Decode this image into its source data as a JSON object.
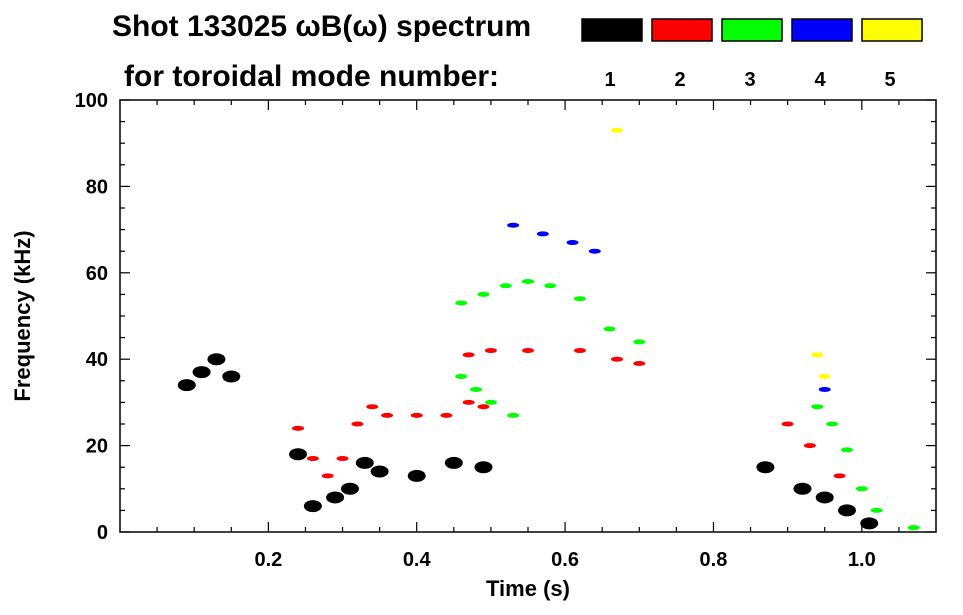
{
  "chart_data": {
    "type": "spectrogram",
    "title_line1": "Shot 133025 ωB(ω) spectrum",
    "title_line2": "for toroidal mode number:",
    "xlabel": "Time (s)",
    "ylabel": "Frequency (kHz)",
    "xlim": [
      0.0,
      1.1
    ],
    "ylim": [
      0,
      100
    ],
    "x_ticks": [
      0.2,
      0.4,
      0.6,
      0.8,
      1.0
    ],
    "x_tick_labels": [
      "0.2",
      "0.4",
      "0.6",
      "0.8",
      "1.0"
    ],
    "y_ticks": [
      0,
      20,
      40,
      60,
      80,
      100
    ],
    "y_tick_labels": [
      "0",
      "20",
      "40",
      "60",
      "80",
      "100"
    ],
    "legend": [
      {
        "label": "1",
        "color": "#000000"
      },
      {
        "label": "2",
        "color": "#ff0000"
      },
      {
        "label": "3",
        "color": "#00ff00"
      },
      {
        "label": "4",
        "color": "#0000ff"
      },
      {
        "label": "5",
        "color": "#ffff00"
      }
    ],
    "series": [
      {
        "name": "n=1",
        "color": "#000000",
        "points": [
          [
            0.09,
            34
          ],
          [
            0.11,
            37
          ],
          [
            0.13,
            40
          ],
          [
            0.15,
            36
          ],
          [
            0.24,
            18
          ],
          [
            0.26,
            6
          ],
          [
            0.29,
            8
          ],
          [
            0.31,
            10
          ],
          [
            0.33,
            16
          ],
          [
            0.35,
            14
          ],
          [
            0.4,
            13
          ],
          [
            0.45,
            16
          ],
          [
            0.49,
            15
          ],
          [
            0.87,
            15
          ],
          [
            0.92,
            10
          ],
          [
            0.95,
            8
          ],
          [
            0.98,
            5
          ],
          [
            1.01,
            2
          ]
        ]
      },
      {
        "name": "n=2",
        "color": "#ff0000",
        "points": [
          [
            0.24,
            24
          ],
          [
            0.26,
            17
          ],
          [
            0.28,
            13
          ],
          [
            0.3,
            17
          ],
          [
            0.32,
            25
          ],
          [
            0.34,
            29
          ],
          [
            0.36,
            27
          ],
          [
            0.4,
            27
          ],
          [
            0.44,
            27
          ],
          [
            0.47,
            30
          ],
          [
            0.49,
            29
          ],
          [
            0.47,
            41
          ],
          [
            0.5,
            42
          ],
          [
            0.55,
            42
          ],
          [
            0.62,
            42
          ],
          [
            0.67,
            40
          ],
          [
            0.7,
            39
          ],
          [
            0.9,
            25
          ],
          [
            0.93,
            20
          ],
          [
            0.97,
            13
          ]
        ]
      },
      {
        "name": "n=3",
        "color": "#00ff00",
        "points": [
          [
            0.46,
            53
          ],
          [
            0.49,
            55
          ],
          [
            0.52,
            57
          ],
          [
            0.55,
            58
          ],
          [
            0.58,
            57
          ],
          [
            0.62,
            54
          ],
          [
            0.66,
            47
          ],
          [
            0.7,
            44
          ],
          [
            0.46,
            36
          ],
          [
            0.48,
            33
          ],
          [
            0.5,
            30
          ],
          [
            0.53,
            27
          ],
          [
            0.94,
            29
          ],
          [
            0.96,
            25
          ],
          [
            0.98,
            19
          ],
          [
            1.0,
            10
          ],
          [
            1.02,
            5
          ],
          [
            1.07,
            1
          ]
        ]
      },
      {
        "name": "n=4",
        "color": "#0000ff",
        "points": [
          [
            0.53,
            71
          ],
          [
            0.57,
            69
          ],
          [
            0.61,
            67
          ],
          [
            0.64,
            65
          ],
          [
            0.95,
            33
          ]
        ]
      },
      {
        "name": "n=5",
        "color": "#ffff00",
        "points": [
          [
            0.67,
            93
          ],
          [
            0.94,
            41
          ],
          [
            0.95,
            36
          ]
        ]
      }
    ]
  }
}
